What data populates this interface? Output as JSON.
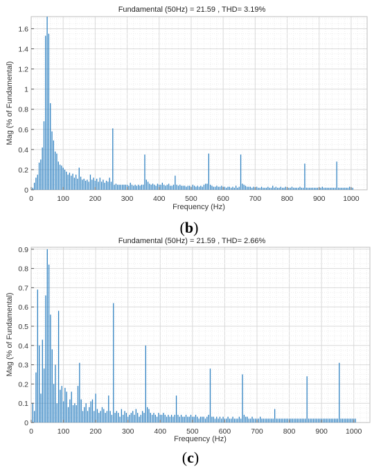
{
  "chart_data": [
    {
      "type": "bar",
      "panel_label": "(b)",
      "panel_open": "(",
      "panel_letter": "b",
      "panel_close": ")",
      "title": "Fundamental (50Hz) = 21.59 , THD= 3.19%",
      "xlabel": "Frequency (Hz)",
      "ylabel": "Mag (% of Fundamental)",
      "xlim": [
        0,
        1050
      ],
      "ylim": [
        0,
        1.72
      ],
      "xticks": [
        0,
        100,
        200,
        300,
        400,
        500,
        600,
        700,
        800,
        900,
        1000
      ],
      "yticks": [
        0,
        0.2,
        0.4,
        0.6,
        0.8,
        1,
        1.2,
        1.4,
        1.6
      ],
      "ytick_labels": [
        "0",
        "0.2",
        "0.4",
        "0.6",
        "0.8",
        "1",
        "1.2",
        "1.4",
        "1.6"
      ],
      "grid": true,
      "bar_color": "#2b7fc0",
      "x_step": 5,
      "values": [
        0.02,
        0.07,
        0.12,
        0.15,
        0.27,
        0.3,
        0.42,
        0.68,
        1.53,
        1.72,
        1.55,
        0.86,
        0.58,
        0.49,
        0.38,
        0.36,
        0.28,
        0.25,
        0.24,
        0.22,
        0.2,
        0.18,
        0.15,
        0.17,
        0.14,
        0.16,
        0.12,
        0.15,
        0.11,
        0.22,
        0.13,
        0.1,
        0.11,
        0.09,
        0.1,
        0.08,
        0.15,
        0.1,
        0.12,
        0.09,
        0.11,
        0.08,
        0.12,
        0.08,
        0.1,
        0.07,
        0.09,
        0.08,
        0.12,
        0.08,
        0.61,
        0.05,
        0.06,
        0.05,
        0.05,
        0.05,
        0.05,
        0.05,
        0.05,
        0.05,
        0.04,
        0.07,
        0.05,
        0.04,
        0.05,
        0.04,
        0.05,
        0.04,
        0.05,
        0.05,
        0.35,
        0.1,
        0.08,
        0.06,
        0.05,
        0.06,
        0.05,
        0.04,
        0.06,
        0.05,
        0.05,
        0.07,
        0.05,
        0.04,
        0.05,
        0.06,
        0.04,
        0.04,
        0.05,
        0.14,
        0.05,
        0.04,
        0.05,
        0.04,
        0.04,
        0.04,
        0.03,
        0.04,
        0.04,
        0.03,
        0.05,
        0.04,
        0.03,
        0.04,
        0.03,
        0.04,
        0.03,
        0.05,
        0.06,
        0.06,
        0.36,
        0.05,
        0.04,
        0.03,
        0.03,
        0.04,
        0.03,
        0.03,
        0.04,
        0.03,
        0.03,
        0.02,
        0.03,
        0.03,
        0.02,
        0.03,
        0.02,
        0.04,
        0.02,
        0.03,
        0.35,
        0.06,
        0.05,
        0.04,
        0.03,
        0.03,
        0.03,
        0.02,
        0.03,
        0.02,
        0.03,
        0.02,
        0.02,
        0.03,
        0.02,
        0.02,
        0.02,
        0.03,
        0.02,
        0.02,
        0.04,
        0.02,
        0.03,
        0.02,
        0.02,
        0.03,
        0.02,
        0.02,
        0.03,
        0.02,
        0.02,
        0.02,
        0.03,
        0.02,
        0.02,
        0.02,
        0.02,
        0.03,
        0.02,
        0.02,
        0.26,
        0.02,
        0.02,
        0.02,
        0.02,
        0.02,
        0.02,
        0.02,
        0.02,
        0.02,
        0.02,
        0.03,
        0.02,
        0.02,
        0.02,
        0.02,
        0.02,
        0.02,
        0.02,
        0.02,
        0.28,
        0.02,
        0.02,
        0.02,
        0.02,
        0.02,
        0.02,
        0.02,
        0.03,
        0.02,
        0.02
      ]
    },
    {
      "type": "bar",
      "panel_label": "(c)",
      "panel_open": "(",
      "panel_letter": "c",
      "panel_close": ")",
      "title": "Fundamental (50Hz) = 21.59 , THD= 2.66%",
      "xlabel": "Frequency (Hz)",
      "ylabel": "Mag (% of Fundamental)",
      "xlim": [
        0,
        1050
      ],
      "ylim": [
        0,
        0.91
      ],
      "xticks": [
        0,
        100,
        200,
        300,
        400,
        500,
        600,
        700,
        800,
        900,
        1000
      ],
      "yticks": [
        0,
        0.1,
        0.2,
        0.3,
        0.4,
        0.5,
        0.6,
        0.7,
        0.8,
        0.9
      ],
      "ytick_labels": [
        "0",
        "0.1",
        "0.2",
        "0.3",
        "0.4",
        "0.5",
        "0.6",
        "0.7",
        "0.8",
        "0.9"
      ],
      "grid": true,
      "bar_color": "#2b7fc0",
      "x_step": 5,
      "values": [
        0.1,
        0.06,
        0.26,
        0.69,
        0.4,
        0.15,
        0.43,
        0.28,
        0.66,
        0.9,
        0.82,
        0.56,
        0.38,
        0.2,
        0.3,
        0.1,
        0.58,
        0.17,
        0.19,
        0.11,
        0.18,
        0.16,
        0.08,
        0.12,
        0.16,
        0.09,
        0.1,
        0.09,
        0.19,
        0.31,
        0.12,
        0.06,
        0.08,
        0.1,
        0.06,
        0.08,
        0.11,
        0.12,
        0.06,
        0.15,
        0.07,
        0.05,
        0.06,
        0.08,
        0.07,
        0.05,
        0.06,
        0.14,
        0.06,
        0.04,
        0.62,
        0.05,
        0.06,
        0.05,
        0.03,
        0.07,
        0.04,
        0.06,
        0.05,
        0.03,
        0.04,
        0.05,
        0.06,
        0.04,
        0.07,
        0.05,
        0.03,
        0.04,
        0.06,
        0.05,
        0.4,
        0.08,
        0.07,
        0.05,
        0.04,
        0.05,
        0.04,
        0.03,
        0.05,
        0.04,
        0.04,
        0.05,
        0.04,
        0.03,
        0.04,
        0.03,
        0.04,
        0.03,
        0.04,
        0.14,
        0.04,
        0.03,
        0.04,
        0.03,
        0.03,
        0.04,
        0.03,
        0.03,
        0.04,
        0.03,
        0.03,
        0.04,
        0.03,
        0.02,
        0.03,
        0.03,
        0.03,
        0.02,
        0.03,
        0.04,
        0.28,
        0.03,
        0.03,
        0.02,
        0.03,
        0.02,
        0.03,
        0.02,
        0.03,
        0.02,
        0.02,
        0.03,
        0.02,
        0.02,
        0.03,
        0.02,
        0.02,
        0.02,
        0.03,
        0.02,
        0.25,
        0.04,
        0.03,
        0.03,
        0.02,
        0.02,
        0.03,
        0.02,
        0.02,
        0.02,
        0.02,
        0.03,
        0.02,
        0.02,
        0.02,
        0.02,
        0.02,
        0.02,
        0.02,
        0.02,
        0.07,
        0.02,
        0.02,
        0.02,
        0.02,
        0.02,
        0.02,
        0.02,
        0.02,
        0.02,
        0.02,
        0.02,
        0.02,
        0.02,
        0.02,
        0.02,
        0.02,
        0.02,
        0.02,
        0.02,
        0.24,
        0.02,
        0.02,
        0.02,
        0.02,
        0.02,
        0.02,
        0.02,
        0.02,
        0.02,
        0.02,
        0.02,
        0.02,
        0.02,
        0.02,
        0.02,
        0.02,
        0.02,
        0.02,
        0.02,
        0.31,
        0.02,
        0.02,
        0.02,
        0.02,
        0.02,
        0.02,
        0.02,
        0.02,
        0.02,
        0.02
      ]
    }
  ]
}
